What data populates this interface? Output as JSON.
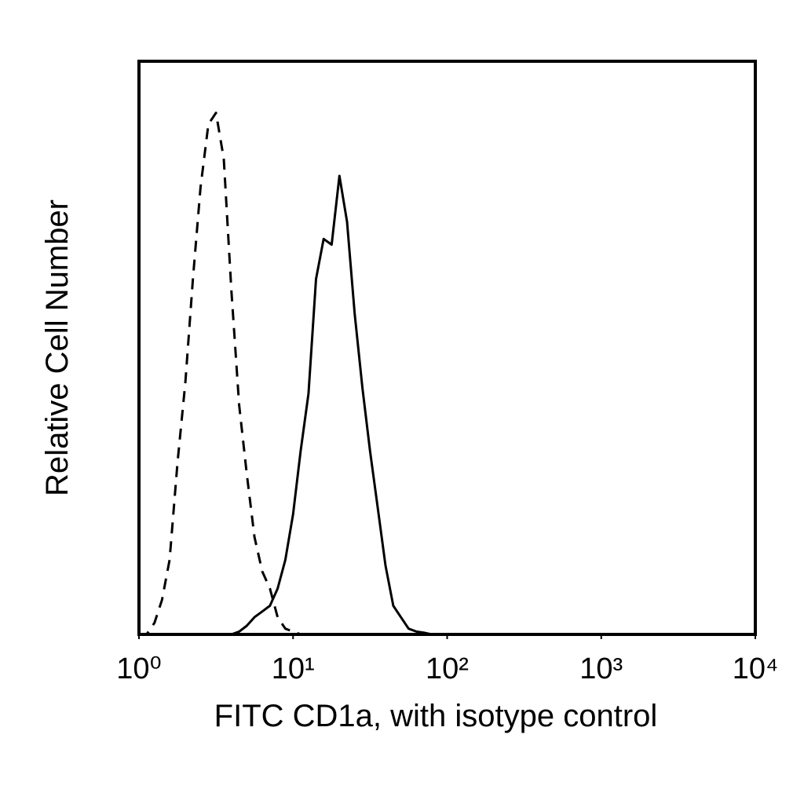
{
  "chart_data": {
    "type": "line",
    "xlabel": "FITC CD1a, with isotype control",
    "ylabel": "Relative Cell Number",
    "xscale": "log",
    "xlim": [
      1,
      10000
    ],
    "xticks": [
      {
        "value": 1,
        "label": "10⁰"
      },
      {
        "value": 10,
        "label": "10¹"
      },
      {
        "value": 100,
        "label": "10²"
      },
      {
        "value": 1000,
        "label": "10³"
      },
      {
        "value": 10000,
        "label": "10⁴"
      }
    ],
    "ylim": [
      0,
      100
    ],
    "x": [
      1,
      1.12,
      1.26,
      1.41,
      1.58,
      1.78,
      2,
      2.24,
      2.51,
      2.82,
      3.16,
      3.55,
      3.98,
      4.47,
      5.01,
      5.62,
      6.31,
      7.08,
      7.94,
      8.91,
      10,
      11.2,
      12.6,
      14.1,
      15.8,
      17.8,
      20,
      22.4,
      25.1,
      28.2,
      31.6,
      35.5,
      39.8,
      44.7,
      50.1,
      56.2,
      63.1,
      70.8,
      79.4,
      89.1,
      100
    ],
    "series": [
      {
        "color": "#000000",
        "dashed": true,
        "values": [
          0,
          0,
          2,
          6,
          13,
          30,
          44,
          62,
          78,
          89,
          91,
          83,
          60,
          40,
          28,
          17,
          11,
          8,
          3,
          1,
          0.5,
          0,
          0,
          null,
          null,
          null,
          null,
          null,
          null,
          null,
          null,
          null,
          null,
          null,
          null,
          null,
          null,
          null,
          null,
          null,
          null
        ]
      },
      {
        "color": "#000000",
        "dashed": false,
        "values": [
          null,
          null,
          null,
          null,
          null,
          null,
          0,
          0,
          0,
          0,
          0,
          0,
          0,
          0.5,
          1.5,
          3,
          4,
          5,
          8,
          13,
          21,
          32,
          42,
          62,
          69,
          68,
          80,
          72,
          56,
          43,
          32,
          22,
          12,
          5,
          3,
          1,
          0.5,
          0.3,
          0,
          0,
          0
        ]
      }
    ]
  }
}
